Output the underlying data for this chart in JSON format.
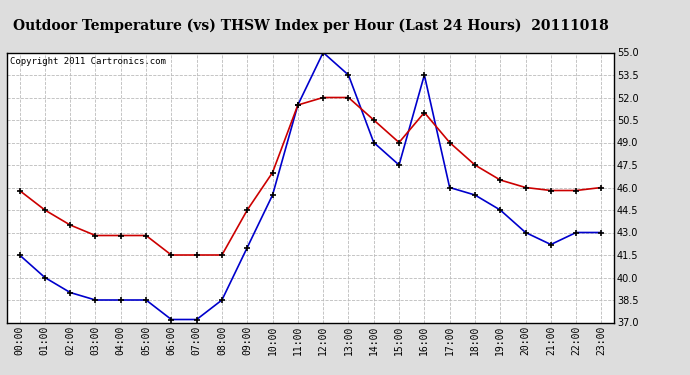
{
  "title": "Outdoor Temperature (vs) THSW Index per Hour (Last 24 Hours)  20111018",
  "copyright": "Copyright 2011 Cartronics.com",
  "hours": [
    "00:00",
    "01:00",
    "02:00",
    "03:00",
    "04:00",
    "05:00",
    "06:00",
    "07:00",
    "08:00",
    "09:00",
    "10:00",
    "11:00",
    "12:00",
    "13:00",
    "14:00",
    "15:00",
    "16:00",
    "17:00",
    "18:00",
    "19:00",
    "20:00",
    "21:00",
    "22:00",
    "23:00"
  ],
  "temp_blue": [
    41.5,
    40.0,
    39.0,
    38.5,
    38.5,
    38.5,
    37.2,
    37.2,
    38.5,
    42.0,
    45.5,
    51.5,
    55.0,
    53.5,
    49.0,
    47.5,
    53.5,
    46.0,
    45.5,
    44.5,
    43.0,
    42.2,
    43.0,
    43.0
  ],
  "temp_red": [
    45.8,
    44.5,
    43.5,
    42.8,
    42.8,
    42.8,
    41.5,
    41.5,
    41.5,
    44.5,
    47.0,
    51.5,
    52.0,
    52.0,
    50.5,
    49.0,
    51.0,
    49.0,
    47.5,
    46.5,
    46.0,
    45.8,
    45.8,
    46.0
  ],
  "ylim": [
    37.0,
    55.0
  ],
  "yticks": [
    37.0,
    38.5,
    40.0,
    41.5,
    43.0,
    44.5,
    46.0,
    47.5,
    49.0,
    50.5,
    52.0,
    53.5,
    55.0
  ],
  "blue_color": "#0000cc",
  "red_color": "#cc0000",
  "grid_color": "#bbbbbb",
  "bg_color": "#ffffff",
  "outer_bg": "#dddddd",
  "title_fontsize": 10,
  "copyright_fontsize": 6.5,
  "tick_fontsize": 7
}
